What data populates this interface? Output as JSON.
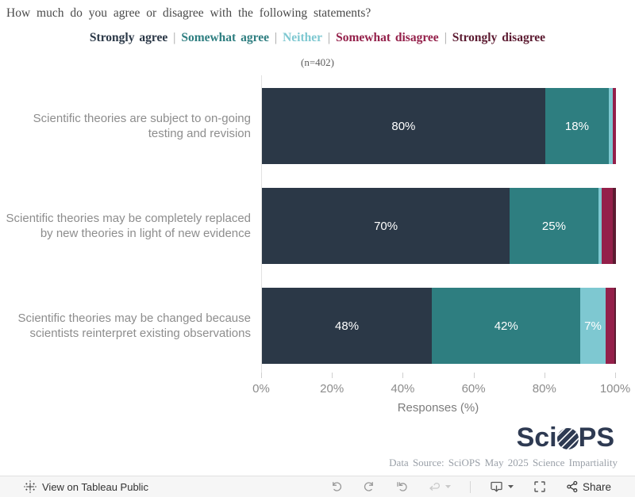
{
  "header": {
    "title": "How much do you agree or disagree with the following statements?",
    "sample_label": "(n=402)"
  },
  "legend": {
    "separator": "|",
    "items": [
      {
        "label": "Strongly agree",
        "color": "#2b3847"
      },
      {
        "label": "Somewhat agree",
        "color": "#2e7e80"
      },
      {
        "label": "Neither",
        "color": "#7ec8d1"
      },
      {
        "label": "Somewhat disagree",
        "color": "#94204a"
      },
      {
        "label": "Strongly disagree",
        "color": "#5c1b31"
      }
    ]
  },
  "chart_data": {
    "type": "bar",
    "orientation": "horizontal",
    "stacked": true,
    "title": "How much do you agree or disagree with the following statements?",
    "subtitle": "(n=402)",
    "xlabel": "Responses (%)",
    "xlim": [
      0,
      100
    ],
    "x_ticks": [
      "0%",
      "20%",
      "40%",
      "60%",
      "80%",
      "100%"
    ],
    "grid": false,
    "legend_position": "top",
    "label_min_pct": 7,
    "categories": [
      "Scientific theories are subject to on-going testing and revision",
      "Scientific theories may be completely replaced by new theories in light of new evidence",
      "Scientific theories may be changed because scientists reinterpret existing observations"
    ],
    "series": [
      {
        "name": "Strongly agree",
        "color": "#2b3847",
        "values": [
          80,
          70,
          48
        ]
      },
      {
        "name": "Somewhat agree",
        "color": "#2e7e80",
        "values": [
          18,
          25,
          42
        ]
      },
      {
        "name": "Neither",
        "color": "#7ec8d1",
        "values": [
          1,
          1,
          7
        ]
      },
      {
        "name": "Somewhat disagree",
        "color": "#94204a",
        "values": [
          1,
          3,
          2.5
        ]
      },
      {
        "name": "Strongly disagree",
        "color": "#5c1b31",
        "values": [
          0,
          1,
          0.5
        ]
      }
    ]
  },
  "branding": {
    "logo_pre": "Sci",
    "logo_post": "PS",
    "logo_color": "#2e3a52",
    "data_source": "Data Source: SciOPS May 2025 Science Impartiality"
  },
  "toolbar": {
    "view_label": "View on Tableau Public",
    "share_label": "Share",
    "buttons": [
      "undo",
      "redo",
      "revert",
      "refresh",
      "download",
      "fullscreen",
      "share"
    ]
  }
}
